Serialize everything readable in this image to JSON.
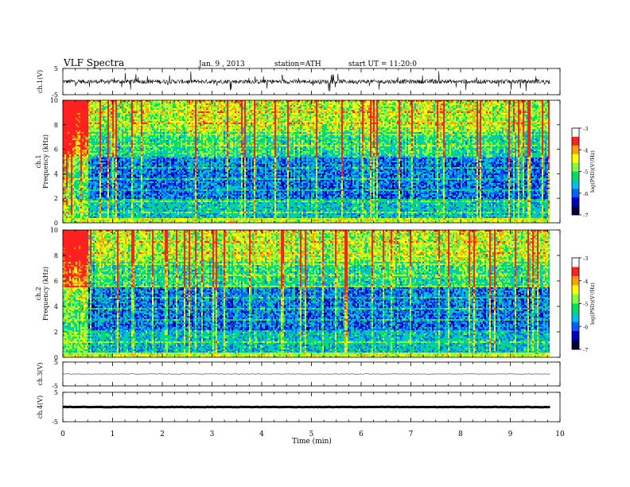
{
  "header": {
    "title": "VLF Spectra",
    "date": "Jan. 9 , 2013",
    "station": "station=ATH",
    "start": "start UT = 11:20:0"
  },
  "colorbar": {
    "label": "log(PSD)(V²/Hz)",
    "ticks": [
      "-3",
      "-4",
      "-5",
      "-6",
      "-7"
    ],
    "colors": [
      "#ffffff",
      "#ff2020",
      "#ffa000",
      "#ffff00",
      "#80ff40",
      "#00e060",
      "#00c0e0",
      "#0060ff",
      "#0000c0",
      "#000040"
    ]
  },
  "chart_data": [
    {
      "type": "line",
      "panel": "ch1-waveform",
      "ylabel": "ch.1(V)",
      "ylim": [
        -5,
        5
      ],
      "yticks": [
        "5",
        "-5"
      ],
      "x_range": [
        0,
        9.8
      ],
      "level": 0,
      "description_of_values": "noisy waveform around 0 V with spikes to about ±4 V"
    },
    {
      "type": "heatmap",
      "panel": "ch1-spectrogram",
      "ylabel": "ch.1 Frequency (kHz)",
      "ylim": [
        0,
        10
      ],
      "yticks": [
        "0",
        "2",
        "4",
        "6",
        "8",
        "10"
      ],
      "x_range": [
        0,
        9.8
      ],
      "value_range": [
        -7,
        -3
      ]
    },
    {
      "type": "heatmap",
      "panel": "ch2-spectrogram",
      "ylabel": "ch.2 Frequency (kHz)",
      "ylim": [
        0,
        10
      ],
      "yticks": [
        "0",
        "2",
        "4",
        "6",
        "8",
        "10"
      ],
      "x_range": [
        0,
        9.8
      ],
      "value_range": [
        -7,
        -3
      ]
    },
    {
      "type": "line",
      "panel": "ch3-waveform",
      "ylabel": "ch.3(V)",
      "ylim": [
        -5,
        5
      ],
      "yticks": [
        "5",
        "-5"
      ],
      "x_range": [
        0,
        9.8
      ],
      "level": 0
    },
    {
      "type": "line",
      "panel": "ch4-waveform",
      "ylabel": "ch.4(V)",
      "ylim": [
        -5,
        5
      ],
      "yticks": [
        "5",
        "-5"
      ],
      "x_range": [
        0,
        9.8
      ],
      "level": 0
    }
  ],
  "xaxis": {
    "label": "Time (min)",
    "lim": [
      0,
      10
    ],
    "ticks": [
      "0",
      "1",
      "2",
      "3",
      "4",
      "5",
      "6",
      "7",
      "8",
      "9",
      "10"
    ]
  }
}
